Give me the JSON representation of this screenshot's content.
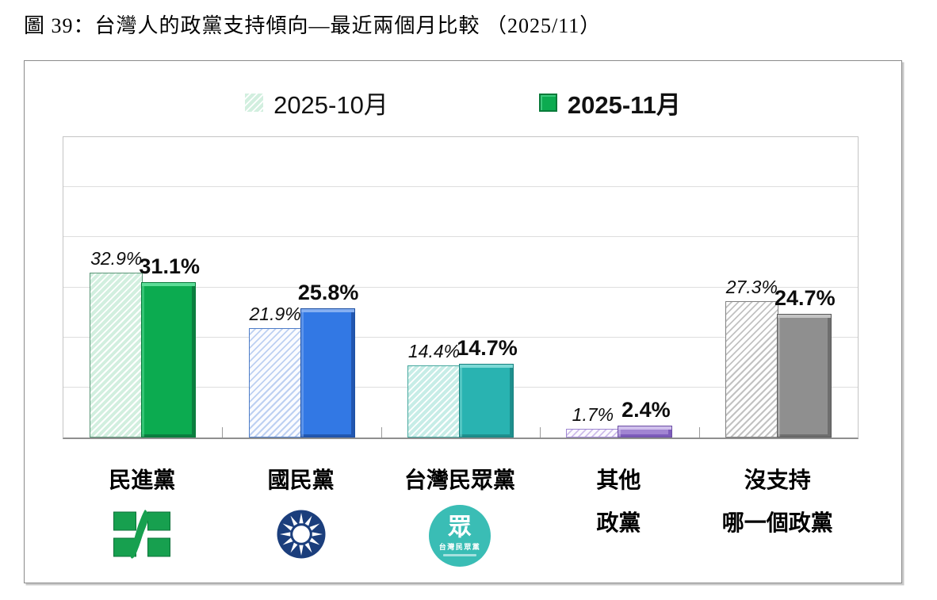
{
  "title": "圖 39：台灣人的政黨支持傾向—最近兩個月比較 （2025/11）",
  "chart_data": {
    "type": "bar",
    "title": "台灣人的政黨支持傾向—最近兩個月比較",
    "xlabel": "",
    "ylabel": "",
    "ylim": [
      0,
      60
    ],
    "grid_step": 10,
    "grid": true,
    "legend_position": "top-center",
    "categories": [
      "民進黨",
      "國民黨",
      "台灣民眾黨",
      "其他政黨",
      "沒支持哪一個政黨"
    ],
    "category_lines": [
      [
        "民進黨"
      ],
      [
        "國民黨"
      ],
      [
        "台灣民眾黨"
      ],
      [
        "其他",
        "政黨"
      ],
      [
        "沒支持",
        "哪一個政黨"
      ]
    ],
    "category_keys": [
      "dpp",
      "kmt",
      "tpp",
      "other-party",
      "no-party"
    ],
    "logos": [
      "dpp",
      "kmt",
      "tpp",
      null,
      null
    ],
    "series": [
      {
        "name": "2025-10月",
        "style": "hatched",
        "values": [
          32.9,
          21.9,
          14.4,
          1.7,
          27.3
        ]
      },
      {
        "name": "2025-11月",
        "style": "solid",
        "values": [
          31.1,
          25.8,
          14.7,
          2.4,
          24.7
        ]
      }
    ],
    "value_label_format": "{value}%",
    "palette": [
      {
        "solid": "#0CAB50",
        "solidBorder": "#077A39",
        "solidLight": "#5CDD97",
        "solidDark": "#0B7E3F",
        "hatchBg": "#D2EFDF",
        "hatchLine": "#FFFFFF",
        "hatchBorder": "#5C9678"
      },
      {
        "solid": "#3278E4",
        "solidBorder": "#1D4FA2",
        "solidLight": "#85AFF1",
        "solidDark": "#2257B0",
        "hatchBg": "#FBFCFF",
        "hatchLine": "#BDD0F2",
        "hatchBorder": "#4D7CC7"
      },
      {
        "solid": "#29B3B1",
        "solidBorder": "#17807E",
        "solidLight": "#7DD9D6",
        "solidDark": "#1E8F8D",
        "hatchBg": "#C7EDE7",
        "hatchLine": "#FFFFFF",
        "hatchBorder": "#45A79E"
      },
      {
        "solid": "#A184D2",
        "solidBorder": "#6A4DA4",
        "solidLight": "#D0C0EC",
        "solidDark": "#7D5BBB",
        "hatchBg": "#FBFAFE",
        "hatchLine": "#CDBCEA",
        "hatchBorder": "#9F86D2"
      },
      {
        "solid": "#8F8F8F",
        "solidBorder": "#595959",
        "solidLight": "#C4C4C4",
        "solidDark": "#6E6E6E",
        "hatchBg": "#FFFFFF",
        "hatchLine": "#C2C2C2",
        "hatchBorder": "#808080"
      }
    ],
    "axis_color": "#8F8F8F",
    "grid_color": "#DEDEDE",
    "brand_colors": {
      "dpp_green": "#17A04F",
      "kmt_navy": "#1B3E7C",
      "tpp_teal": "#3ABDB5"
    }
  },
  "logo_text": {
    "tpp_char": "眾",
    "tpp_name": "台灣民眾黨"
  }
}
